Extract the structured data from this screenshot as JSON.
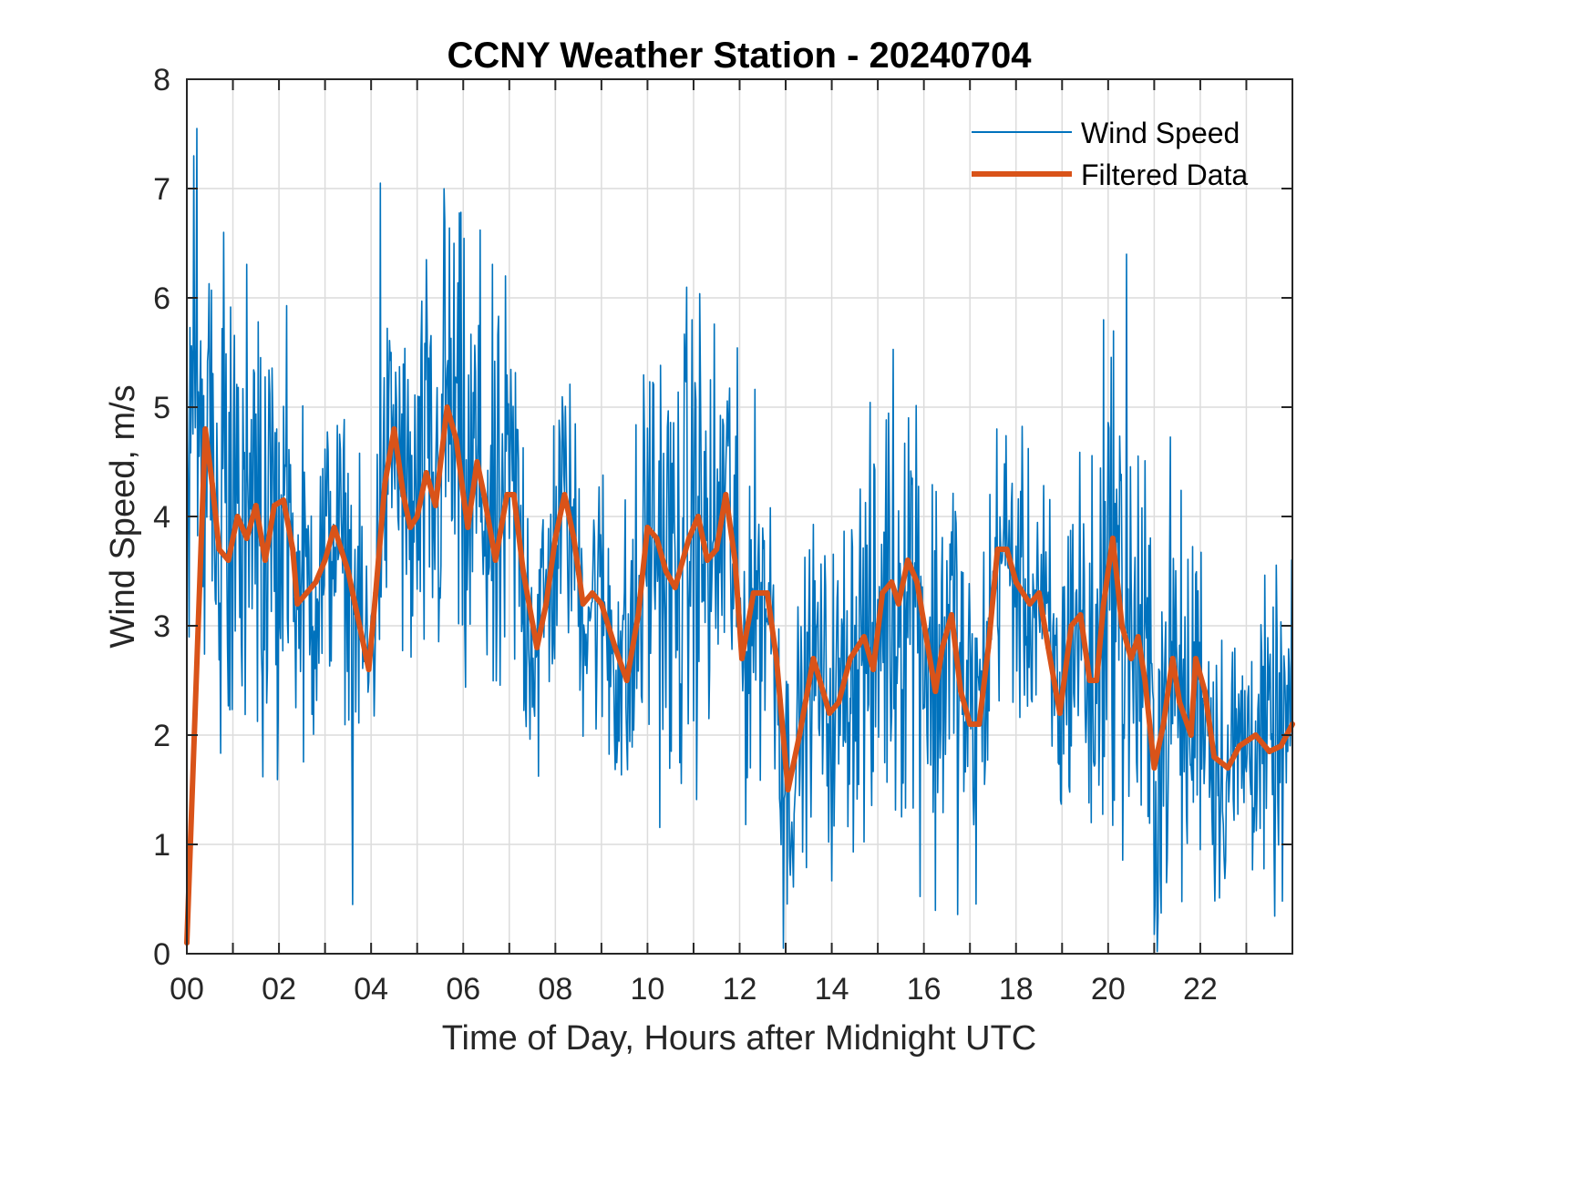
{
  "chart_data": {
    "type": "line",
    "title": "CCNY Weather Station - 20240704",
    "xlabel": "Time of Day, Hours after Midnight UTC",
    "ylabel": "Wind Speed, m/s",
    "xlim": [
      0,
      24
    ],
    "ylim": [
      0,
      8
    ],
    "grid": true,
    "legend_position": "top-right",
    "x_ticks": [
      0,
      2,
      4,
      6,
      8,
      10,
      12,
      14,
      16,
      18,
      20,
      22
    ],
    "x_tick_labels": [
      "00",
      "02",
      "04",
      "06",
      "08",
      "10",
      "12",
      "14",
      "16",
      "18",
      "20",
      "22"
    ],
    "x_minor_ticks_every_hours": 1,
    "y_ticks": [
      0,
      1,
      2,
      3,
      4,
      5,
      6,
      7,
      8
    ],
    "y_tick_labels": [
      "0",
      "1",
      "2",
      "3",
      "4",
      "5",
      "6",
      "7",
      "8"
    ],
    "series": [
      {
        "name": "Wind Speed",
        "color": "#0072BD",
        "style": "thin",
        "note": "raw measurements; high-frequency noise around the filtered trend, peaks up to ~7.5 m/s near 00:15, min ~0 near 13:00",
        "notable_points": [
          {
            "x": 0.15,
            "y": 7.3
          },
          {
            "x": 0.22,
            "y": 7.55
          },
          {
            "x": 0.8,
            "y": 6.6
          },
          {
            "x": 4.2,
            "y": 7.05
          },
          {
            "x": 5.6,
            "y": 6.7
          },
          {
            "x": 12.95,
            "y": 0.05
          },
          {
            "x": 20.4,
            "y": 6.4
          },
          {
            "x": 19.9,
            "y": 5.8
          },
          {
            "x": 3.6,
            "y": 0.45
          }
        ]
      },
      {
        "name": "Filtered Data",
        "color": "#D95319",
        "style": "thick",
        "x": [
          0.0,
          0.4,
          0.55,
          0.7,
          0.9,
          1.1,
          1.3,
          1.5,
          1.7,
          1.9,
          2.1,
          2.3,
          2.4,
          2.6,
          2.8,
          3.0,
          3.2,
          3.5,
          3.7,
          3.95,
          4.1,
          4.3,
          4.5,
          4.7,
          4.85,
          5.0,
          5.2,
          5.4,
          5.65,
          5.85,
          6.0,
          6.1,
          6.3,
          6.45,
          6.7,
          6.95,
          7.1,
          7.3,
          7.6,
          7.8,
          8.0,
          8.2,
          8.4,
          8.6,
          8.8,
          9.0,
          9.3,
          9.55,
          9.8,
          10.0,
          10.2,
          10.4,
          10.6,
          10.9,
          11.1,
          11.3,
          11.5,
          11.7,
          11.9,
          12.05,
          12.3,
          12.6,
          12.8,
          13.05,
          13.3,
          13.6,
          13.95,
          14.15,
          14.4,
          14.7,
          14.9,
          15.1,
          15.3,
          15.45,
          15.65,
          15.85,
          16.05,
          16.25,
          16.4,
          16.6,
          16.8,
          17.0,
          17.2,
          17.4,
          17.6,
          17.8,
          18.0,
          18.3,
          18.5,
          18.7,
          18.95,
          19.2,
          19.4,
          19.6,
          19.75,
          19.9,
          20.1,
          20.3,
          20.5,
          20.65,
          20.8,
          21.0,
          21.2,
          21.4,
          21.55,
          21.8,
          21.9,
          22.1,
          22.3,
          22.6,
          22.85,
          23.2,
          23.5,
          23.75,
          24.0
        ],
        "y": [
          0.1,
          4.8,
          4.3,
          3.7,
          3.6,
          4.0,
          3.8,
          4.1,
          3.6,
          4.1,
          4.15,
          3.7,
          3.2,
          3.3,
          3.4,
          3.6,
          3.9,
          3.5,
          3.1,
          2.6,
          3.3,
          4.3,
          4.8,
          4.2,
          3.9,
          4.0,
          4.4,
          4.1,
          5.0,
          4.7,
          4.2,
          3.9,
          4.5,
          4.2,
          3.6,
          4.2,
          4.2,
          3.5,
          2.8,
          3.2,
          3.8,
          4.2,
          3.8,
          3.2,
          3.3,
          3.2,
          2.8,
          2.5,
          3.1,
          3.9,
          3.8,
          3.5,
          3.35,
          3.8,
          4.0,
          3.6,
          3.7,
          4.2,
          3.6,
          2.7,
          3.3,
          3.3,
          2.7,
          1.5,
          2.0,
          2.7,
          2.2,
          2.3,
          2.7,
          2.9,
          2.6,
          3.3,
          3.4,
          3.2,
          3.6,
          3.4,
          2.9,
          2.4,
          2.8,
          3.1,
          2.4,
          2.1,
          2.1,
          2.8,
          3.7,
          3.7,
          3.4,
          3.2,
          3.3,
          2.8,
          2.2,
          3.0,
          3.1,
          2.5,
          2.5,
          3.2,
          3.8,
          3.0,
          2.7,
          2.9,
          2.5,
          1.7,
          2.1,
          2.7,
          2.3,
          2.0,
          2.7,
          2.4,
          1.8,
          1.7,
          1.9,
          2.0,
          1.85,
          1.9,
          2.1
        ]
      }
    ],
    "legend": [
      {
        "label": "Wind Speed",
        "color": "#0072BD"
      },
      {
        "label": "Filtered Data",
        "color": "#D95319"
      }
    ]
  },
  "colors": {
    "wind_speed": "#0072BD",
    "filtered": "#D95319",
    "grid": "#dcdcdc",
    "axis": "#262626"
  }
}
